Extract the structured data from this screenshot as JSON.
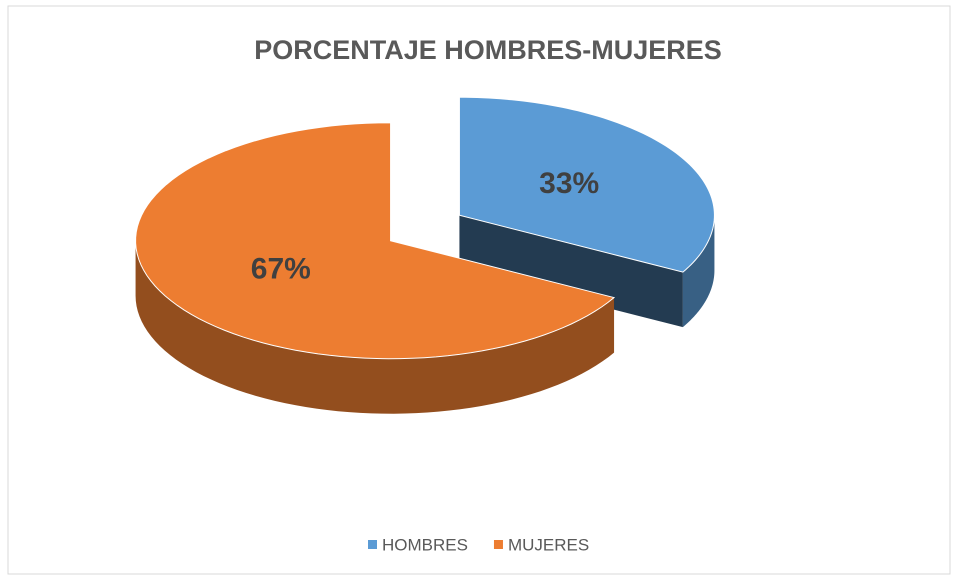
{
  "chart_data": {
    "type": "pie",
    "title": "PORCENTAJE HOMBRES-MUJERES",
    "categories": [
      "HOMBRES",
      "MUJERES"
    ],
    "values": [
      33,
      67
    ],
    "value_labels": [
      "33%",
      "67%"
    ],
    "colors": [
      "#5b9bd5",
      "#ed7d31"
    ],
    "legend": "bottom"
  }
}
